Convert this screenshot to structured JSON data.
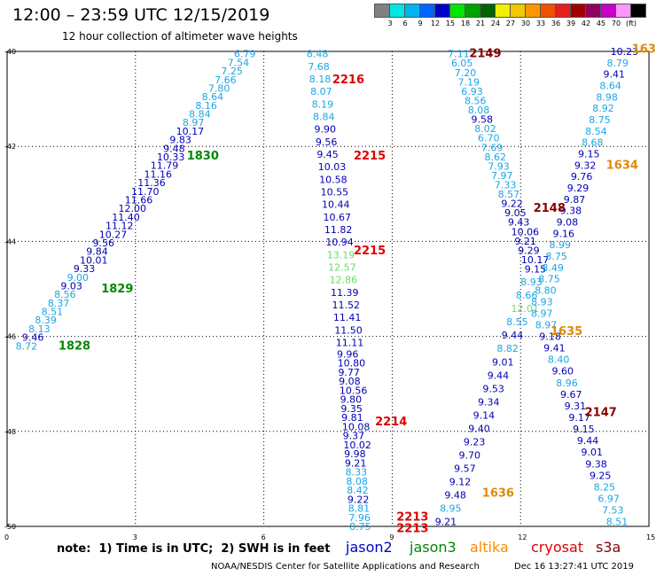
{
  "header": {
    "title": "12:00 – 23:59 UTC 12/15/2019",
    "subtitle": "12 hour collection of altimeter wave heights"
  },
  "colorbar": {
    "colors": [
      "#808080",
      "#00e6e6",
      "#00b4f0",
      "#0064ff",
      "#0000c8",
      "#00e600",
      "#00a000",
      "#006400",
      "#f0f000",
      "#f0c800",
      "#ff9600",
      "#f05000",
      "#e61e1e",
      "#a00000",
      "#900060",
      "#c800c8",
      "#ff96ff",
      "#000000"
    ],
    "labels": [
      "3",
      "6",
      "9",
      "12",
      "15",
      "18",
      "21",
      "24",
      "27",
      "30",
      "33",
      "36",
      "39",
      "42",
      "45",
      "70",
      "(ft)"
    ]
  },
  "axes": {
    "x_ticks": [
      "0",
      "3",
      "6",
      "9",
      "12",
      "15"
    ],
    "y_ticks": [
      "-40",
      "-42",
      "-44",
      "-46",
      "-48",
      "-50"
    ]
  },
  "passes": [
    {
      "label": "1830",
      "sat": "jason3",
      "lon": 4.2,
      "lat": -42.2
    },
    {
      "label": "1829",
      "sat": "jason3",
      "lon": 2.2,
      "lat": -45.0
    },
    {
      "label": "1828",
      "sat": "jason3",
      "lon": 1.2,
      "lat": -46.2
    },
    {
      "label": "2216",
      "sat": "cryosat",
      "lon": 7.6,
      "lat": -40.6
    },
    {
      "label": "2215",
      "sat": "cryosat",
      "lon": 8.1,
      "lat": -42.2
    },
    {
      "label": "2215",
      "sat": "cryosat",
      "lon": 8.1,
      "lat": -44.2
    },
    {
      "label": "2214",
      "sat": "cryosat",
      "lon": 8.6,
      "lat": -47.8
    },
    {
      "label": "2213",
      "sat": "cryosat",
      "lon": 9.1,
      "lat": -49.8
    },
    {
      "label": "2213",
      "sat": "cryosat",
      "lon": 9.1,
      "lat": -50.05
    },
    {
      "label": "2149",
      "sat": "s3a",
      "lon": 10.8,
      "lat": -40.05
    },
    {
      "label": "2148",
      "sat": "s3a",
      "lon": 12.3,
      "lat": -43.3
    },
    {
      "label": "2147",
      "sat": "s3a",
      "lon": 13.5,
      "lat": -47.6
    },
    {
      "label": "1633",
      "sat": "altika",
      "lon": 14.6,
      "lat": -39.95
    },
    {
      "label": "1634",
      "sat": "altika",
      "lon": 14.0,
      "lat": -42.4
    },
    {
      "label": "1635",
      "sat": "altika",
      "lon": 12.7,
      "lat": -45.9
    },
    {
      "label": "1636",
      "sat": "altika",
      "lon": 11.1,
      "lat": -49.3
    }
  ],
  "tracks": [
    {
      "sat": "jason2",
      "obs": [
        [
          "6.79",
          "lightblue"
        ],
        [
          "7.54",
          "lightblue"
        ],
        [
          "7.25",
          "lightblue"
        ],
        [
          "7.66",
          "lightblue"
        ],
        [
          "7.80",
          "lightblue"
        ],
        [
          "8.64",
          "lightblue"
        ],
        [
          "8.16",
          "lightblue"
        ],
        [
          "8.84",
          "lightblue"
        ],
        [
          "8.97",
          "lightblue"
        ],
        [
          "10.17",
          "blue"
        ],
        [
          "9.83",
          "blue"
        ],
        [
          "9.48",
          "blue"
        ],
        [
          "10.33",
          "blue"
        ],
        [
          "11.79",
          "blue"
        ],
        [
          "11.16",
          "blue"
        ],
        [
          "11.36",
          "blue"
        ],
        [
          "11.70",
          "blue"
        ],
        [
          "11.66",
          "blue"
        ],
        [
          "12.00",
          "blue"
        ],
        [
          "11.40",
          "blue"
        ],
        [
          "11.12",
          "blue"
        ],
        [
          "10.27",
          "blue"
        ],
        [
          "9.56",
          "blue"
        ],
        [
          "9.84",
          "blue"
        ],
        [
          "10.01",
          "blue"
        ],
        [
          "9.33",
          "blue"
        ],
        [
          "9.00",
          "lightblue"
        ],
        [
          "9.03",
          "blue"
        ],
        [
          "8.56",
          "lightblue"
        ],
        [
          "8.37",
          "lightblue"
        ],
        [
          "8.51",
          "lightblue"
        ],
        [
          "8.39",
          "lightblue"
        ],
        [
          "8.13",
          "lightblue"
        ],
        [
          "9.46",
          "blue"
        ],
        [
          "8.72",
          "lightblue"
        ]
      ]
    },
    {
      "sat": "jason2",
      "obs": [
        [
          "8.48",
          "lightblue"
        ],
        [
          "7.68",
          "lightblue"
        ],
        [
          "8.18",
          "lightblue"
        ],
        [
          "8.07",
          "lightblue"
        ],
        [
          "8.19",
          "lightblue"
        ],
        [
          "8.84",
          "lightblue"
        ],
        [
          "9.90",
          "blue"
        ],
        [
          "9.56",
          "blue"
        ],
        [
          "9.45",
          "blue"
        ],
        [
          "10.03",
          "blue"
        ],
        [
          "10.58",
          "blue"
        ],
        [
          "10.55",
          "blue"
        ],
        [
          "10.44",
          "blue"
        ],
        [
          "10.67",
          "blue"
        ],
        [
          "11.82",
          "blue"
        ],
        [
          "10.94",
          "blue"
        ],
        [
          "13.19",
          "lightgreen"
        ],
        [
          "12.57",
          "lightgreen"
        ],
        [
          "12.86",
          "lightgreen"
        ],
        [
          "11.39",
          "blue"
        ],
        [
          "11.52",
          "blue"
        ],
        [
          "11.41",
          "blue"
        ],
        [
          "11.50",
          "blue"
        ],
        [
          "11.11",
          "blue"
        ],
        [
          "9.96",
          "blue"
        ],
        [
          "10.80",
          "blue"
        ],
        [
          "9.77",
          "blue"
        ],
        [
          "9.08",
          "blue"
        ],
        [
          "10.56",
          "blue"
        ],
        [
          "9.80",
          "blue"
        ],
        [
          "9.35",
          "blue"
        ],
        [
          "9.81",
          "blue"
        ],
        [
          "10.08",
          "blue"
        ],
        [
          "9.37",
          "blue"
        ],
        [
          "10.02",
          "blue"
        ],
        [
          "9.98",
          "blue"
        ],
        [
          "9.21",
          "blue"
        ],
        [
          "8.33",
          "lightblue"
        ],
        [
          "8.08",
          "lightblue"
        ],
        [
          "8.42",
          "lightblue"
        ],
        [
          "9.22",
          "blue"
        ],
        [
          "8.81",
          "lightblue"
        ],
        [
          "7.96",
          "lightblue"
        ],
        [
          "8.75",
          "lightblue"
        ]
      ]
    },
    {
      "sat": "jason2",
      "obs": [
        [
          "7.11",
          "lightblue"
        ],
        [
          "6.05",
          "lightblue"
        ],
        [
          "7.20",
          "lightblue"
        ],
        [
          "7.19",
          "lightblue"
        ],
        [
          "6.93",
          "lightblue"
        ],
        [
          "8.56",
          "lightblue"
        ],
        [
          "8.08",
          "lightblue"
        ],
        [
          "9.58",
          "blue"
        ],
        [
          "8.02",
          "lightblue"
        ],
        [
          "6.70",
          "lightblue"
        ],
        [
          "7.69",
          "lightblue"
        ],
        [
          "8.62",
          "lightblue"
        ],
        [
          "7.93",
          "lightblue"
        ],
        [
          "7.97",
          "lightblue"
        ],
        [
          "7.33",
          "lightblue"
        ],
        [
          "8.57",
          "lightblue"
        ],
        [
          "9.22",
          "blue"
        ],
        [
          "9.05",
          "blue"
        ],
        [
          "9.43",
          "blue"
        ],
        [
          "10.06",
          "blue"
        ],
        [
          "9.21",
          "blue"
        ],
        [
          "9.29",
          "blue"
        ],
        [
          "10.17",
          "blue"
        ],
        [
          "9.15",
          "blue"
        ],
        [
          "8.93",
          "lightblue"
        ],
        [
          "8.66",
          "lightblue"
        ],
        [
          "12.01",
          "lightgreen"
        ],
        [
          "8.55",
          "lightblue"
        ],
        [
          "9.44",
          "blue"
        ],
        [
          "8.82",
          "lightblue"
        ],
        [
          "9.01",
          "blue"
        ],
        [
          "9.44",
          "blue"
        ],
        [
          "9.53",
          "blue"
        ],
        [
          "9.34",
          "blue"
        ],
        [
          "9.14",
          "blue"
        ],
        [
          "9.40",
          "blue"
        ],
        [
          "9.23",
          "blue"
        ],
        [
          "9.70",
          "blue"
        ],
        [
          "9.57",
          "blue"
        ],
        [
          "9.12",
          "blue"
        ],
        [
          "9.48",
          "blue"
        ],
        [
          "8.95",
          "lightblue"
        ],
        [
          "9.21",
          "blue"
        ]
      ]
    },
    {
      "sat": "jason2",
      "obs": [
        [
          "10.23",
          "blue"
        ],
        [
          "8.79",
          "lightblue"
        ],
        [
          "9.41",
          "blue"
        ],
        [
          "8.64",
          "lightblue"
        ],
        [
          "8.98",
          "lightblue"
        ],
        [
          "8.92",
          "lightblue"
        ],
        [
          "8.75",
          "lightblue"
        ],
        [
          "8.54",
          "lightblue"
        ],
        [
          "8.68",
          "lightblue"
        ],
        [
          "9.15",
          "blue"
        ],
        [
          "9.32",
          "blue"
        ],
        [
          "9.76",
          "blue"
        ],
        [
          "9.29",
          "blue"
        ],
        [
          "9.87",
          "blue"
        ],
        [
          "9.38",
          "blue"
        ],
        [
          "9.08",
          "blue"
        ],
        [
          "9.16",
          "blue"
        ],
        [
          "8.99",
          "lightblue"
        ],
        [
          "8.75",
          "lightblue"
        ],
        [
          "8.49",
          "lightblue"
        ],
        [
          "8.75",
          "lightblue"
        ],
        [
          "8.80",
          "lightblue"
        ],
        [
          "8.93",
          "lightblue"
        ],
        [
          "8.97",
          "lightblue"
        ],
        [
          "8.97",
          "lightblue"
        ],
        [
          "9.18",
          "blue"
        ],
        [
          "9.41",
          "blue"
        ],
        [
          "8.40",
          "lightblue"
        ],
        [
          "9.60",
          "blue"
        ],
        [
          "8.96",
          "lightblue"
        ],
        [
          "9.67",
          "blue"
        ],
        [
          "9.31",
          "blue"
        ],
        [
          "9.17",
          "blue"
        ],
        [
          "9.15",
          "blue"
        ],
        [
          "9.44",
          "blue"
        ],
        [
          "9.01",
          "blue"
        ],
        [
          "9.38",
          "blue"
        ],
        [
          "9.25",
          "blue"
        ],
        [
          "8.25",
          "lightblue"
        ],
        [
          "6.97",
          "lightblue"
        ],
        [
          "7.53",
          "lightblue"
        ],
        [
          "8.51",
          "lightblue"
        ]
      ]
    }
  ],
  "legend": {
    "note": "note:  1) Time is in UTC;  2) SWH is in feet",
    "satellites": [
      {
        "name": "jason2",
        "color": "#0000cc"
      },
      {
        "name": "jason3",
        "color": "#008800"
      },
      {
        "name": "altika",
        "color": "#ff8c00"
      },
      {
        "name": "cryosat",
        "color": "#dd0000"
      },
      {
        "name": "s3a",
        "color": "#880000"
      }
    ]
  },
  "footer": {
    "credit": "NOAA/NESDIS Center for Satellite Applications and Research",
    "timestamp": "Dec 16 13:27:41 UTC 2019"
  }
}
